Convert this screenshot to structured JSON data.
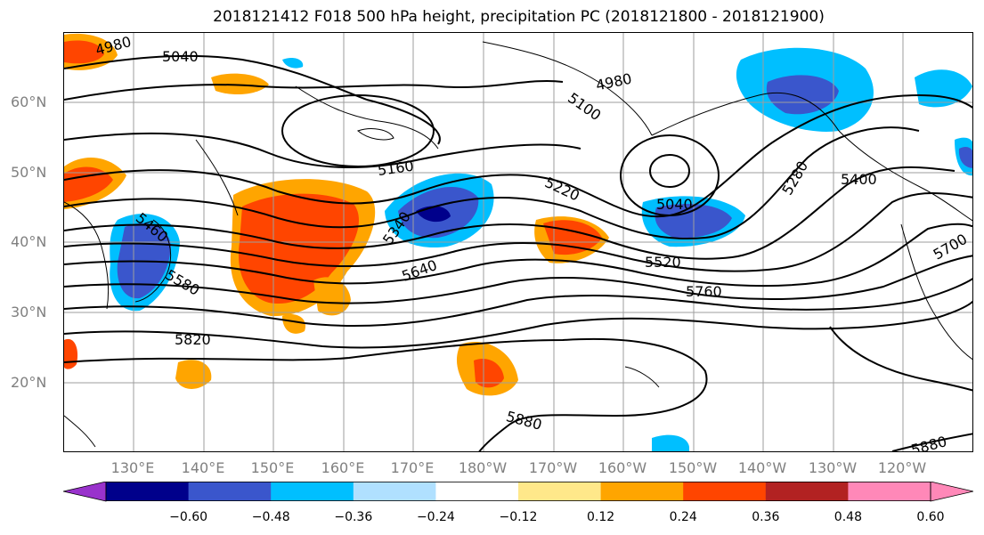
{
  "title": "2018121412 F018 500 hPa height, precipitation PC (2018121800 - 2018121900)",
  "lat_labels": [
    "60°N",
    "50°N",
    "40°N",
    "30°N",
    "20°N"
  ],
  "lon_labels": [
    "130°E",
    "140°E",
    "150°E",
    "160°E",
    "170°E",
    "180°W",
    "170°W",
    "160°W",
    "150°W",
    "140°W",
    "130°W",
    "120°W"
  ],
  "contour_labels": [
    "4980",
    "5040",
    "4980",
    "5100",
    "5160",
    "5220",
    "5040",
    "5280",
    "5400",
    "5340",
    "5460",
    "5580",
    "5640",
    "5520",
    "5700",
    "5760",
    "5820",
    "5880",
    "5880"
  ],
  "colorbar": {
    "ticks": [
      "−0.60",
      "−0.48",
      "−0.36",
      "−0.24",
      "−0.12",
      "0.12",
      "0.24",
      "0.36",
      "0.48",
      "0.60"
    ],
    "colors": [
      "#9932cc",
      "#00008b",
      "#3a56cc",
      "#00bfff",
      "#b0e0ff",
      "#ffffff",
      "#ffe88a",
      "#ffa500",
      "#ff4500",
      "#b22222",
      "#ff88b8",
      "#ff88b8"
    ]
  }
}
